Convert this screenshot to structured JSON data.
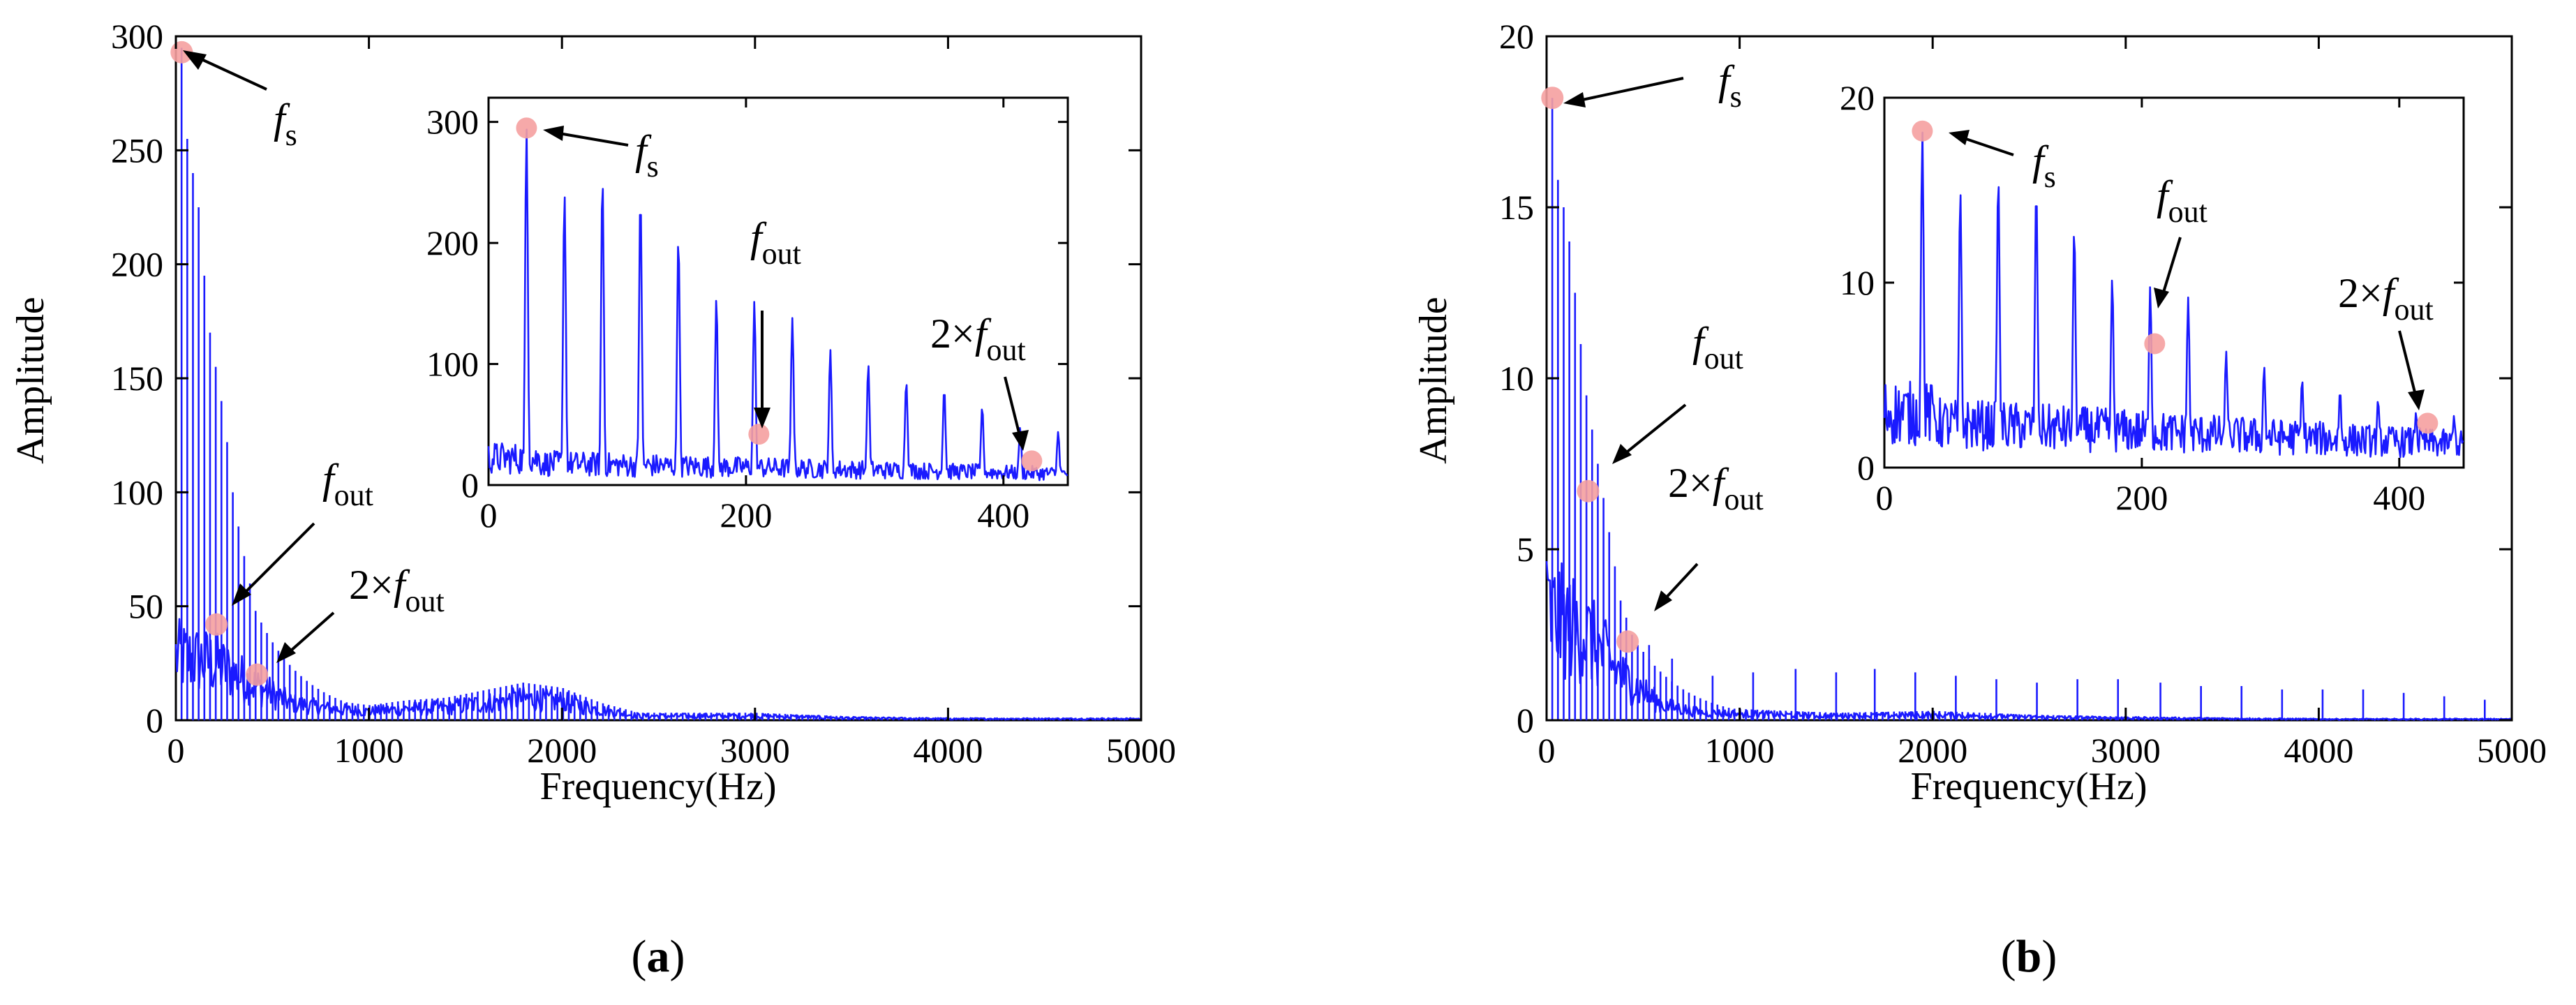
{
  "colors": {
    "line": "#1a1aff",
    "marker": "#f5a0a0",
    "axis": "#000000"
  },
  "chart_data": [
    {
      "id": "a",
      "type": "line",
      "panel_label": "a",
      "xlabel": "Frequency(Hz)",
      "ylabel": "Amplitude",
      "xlim": [
        0,
        5000
      ],
      "ylim": [
        0,
        300
      ],
      "xticks": [
        0,
        1000,
        2000,
        3000,
        4000,
        5000
      ],
      "yticks": [
        0,
        50,
        100,
        150,
        200,
        250,
        300
      ],
      "fs": 29.5,
      "peaks": [
        {
          "x": 29.5,
          "y": 295
        },
        {
          "x": 59,
          "y": 255
        },
        {
          "x": 88.5,
          "y": 240
        },
        {
          "x": 118,
          "y": 225
        },
        {
          "x": 147.5,
          "y": 195
        },
        {
          "x": 177,
          "y": 170
        },
        {
          "x": 206.5,
          "y": 155
        },
        {
          "x": 236,
          "y": 140
        },
        {
          "x": 265.5,
          "y": 122
        },
        {
          "x": 295,
          "y": 100
        },
        {
          "x": 324.5,
          "y": 85
        },
        {
          "x": 354,
          "y": 72
        },
        {
          "x": 383.5,
          "y": 60
        },
        {
          "x": 413,
          "y": 48
        }
      ],
      "baseline": [
        {
          "x": 0,
          "y": 45
        },
        {
          "x": 200,
          "y": 40
        },
        {
          "x": 400,
          "y": 25
        },
        {
          "x": 600,
          "y": 12
        },
        {
          "x": 800,
          "y": 8
        },
        {
          "x": 1000,
          "y": 6
        },
        {
          "x": 1200,
          "y": 8
        },
        {
          "x": 1400,
          "y": 9
        },
        {
          "x": 1600,
          "y": 12
        },
        {
          "x": 1800,
          "y": 15
        },
        {
          "x": 2000,
          "y": 13
        },
        {
          "x": 2200,
          "y": 7
        },
        {
          "x": 2400,
          "y": 3
        },
        {
          "x": 2800,
          "y": 3
        },
        {
          "x": 3000,
          "y": 3
        },
        {
          "x": 3500,
          "y": 1.5
        },
        {
          "x": 4000,
          "y": 1
        },
        {
          "x": 5000,
          "y": 1
        }
      ],
      "markers": [
        {
          "x": 30,
          "y": 293
        },
        {
          "x": 210,
          "y": 42
        },
        {
          "x": 420,
          "y": 20
        }
      ],
      "annotations": [
        {
          "base": "f",
          "sub": "s",
          "prefix": "",
          "target": {
            "x": 30,
            "y": 293
          }
        },
        {
          "base": "f",
          "sub": "out",
          "prefix": "",
          "target": {
            "x": 210,
            "y": 42
          }
        },
        {
          "base": "f",
          "sub": "out",
          "prefix": "2×",
          "target": {
            "x": 420,
            "y": 20
          }
        }
      ],
      "inset": {
        "xlim": [
          0,
          450
        ],
        "ylim": [
          0,
          320
        ],
        "xticks": [
          0,
          200,
          400
        ],
        "yticks": [
          0,
          100,
          200,
          300
        ],
        "fs": 29.5,
        "peaks": [
          {
            "x": 29.5,
            "y": 295
          },
          {
            "x": 59,
            "y": 242
          },
          {
            "x": 88.5,
            "y": 255
          },
          {
            "x": 118,
            "y": 240
          },
          {
            "x": 147.5,
            "y": 205
          },
          {
            "x": 177,
            "y": 155
          },
          {
            "x": 206.5,
            "y": 152
          },
          {
            "x": 236,
            "y": 138
          },
          {
            "x": 265.5,
            "y": 112
          },
          {
            "x": 295,
            "y": 100
          },
          {
            "x": 324.5,
            "y": 86
          },
          {
            "x": 354,
            "y": 80
          },
          {
            "x": 383.5,
            "y": 65
          },
          {
            "x": 413,
            "y": 48
          },
          {
            "x": 442.5,
            "y": 44
          }
        ],
        "noise_level": 30,
        "markers": [
          {
            "x": 29.5,
            "y": 295
          },
          {
            "x": 210,
            "y": 42
          },
          {
            "x": 422,
            "y": 20
          }
        ],
        "annotations": [
          {
            "base": "f",
            "sub": "s",
            "prefix": "",
            "target": {
              "x": 29.5,
              "y": 295
            }
          },
          {
            "base": "f",
            "sub": "out",
            "prefix": "",
            "target": {
              "x": 210,
              "y": 42
            }
          },
          {
            "base": "f",
            "sub": "out",
            "prefix": "2×",
            "target": {
              "x": 422,
              "y": 20
            }
          }
        ]
      }
    },
    {
      "id": "b",
      "type": "line",
      "panel_label": "b",
      "xlabel": "Frequency(Hz)",
      "ylabel": "Amplitude",
      "xlim": [
        0,
        5000
      ],
      "ylim": [
        0,
        20
      ],
      "xticks": [
        0,
        1000,
        2000,
        3000,
        4000,
        5000
      ],
      "yticks": [
        0,
        5,
        10,
        15,
        20
      ],
      "fs": 29.5,
      "peaks": [
        {
          "x": 29.5,
          "y": 18.2
        },
        {
          "x": 59,
          "y": 15.8
        },
        {
          "x": 88.5,
          "y": 15
        },
        {
          "x": 118,
          "y": 14
        },
        {
          "x": 147.5,
          "y": 12.5
        },
        {
          "x": 177,
          "y": 11
        },
        {
          "x": 206.5,
          "y": 9.5
        },
        {
          "x": 236,
          "y": 8.5
        },
        {
          "x": 265.5,
          "y": 7.5
        },
        {
          "x": 295,
          "y": 6.5
        },
        {
          "x": 324.5,
          "y": 5.5
        },
        {
          "x": 354,
          "y": 4.5
        },
        {
          "x": 383.5,
          "y": 3.5
        },
        {
          "x": 413,
          "y": 3
        },
        {
          "x": 442.5,
          "y": 2.5
        },
        {
          "x": 472,
          "y": 2.2
        },
        {
          "x": 501.5,
          "y": 2
        }
      ],
      "spikes": [
        {
          "x": 531,
          "y": 2.2
        },
        {
          "x": 650,
          "y": 1.8
        },
        {
          "x": 860,
          "y": 1.3
        },
        {
          "x": 1070,
          "y": 1.4
        },
        {
          "x": 1290,
          "y": 1.5
        },
        {
          "x": 1500,
          "y": 1.4
        },
        {
          "x": 1700,
          "y": 1.5
        },
        {
          "x": 1910,
          "y": 1.4
        },
        {
          "x": 2120,
          "y": 1.3
        },
        {
          "x": 2330,
          "y": 1.2
        },
        {
          "x": 2540,
          "y": 1.1
        },
        {
          "x": 2750,
          "y": 1.2
        },
        {
          "x": 2960,
          "y": 1.2
        },
        {
          "x": 3180,
          "y": 1.1
        },
        {
          "x": 3390,
          "y": 1.0
        },
        {
          "x": 3600,
          "y": 1.0
        },
        {
          "x": 3810,
          "y": 0.9
        },
        {
          "x": 4020,
          "y": 0.9
        },
        {
          "x": 4230,
          "y": 0.9
        },
        {
          "x": 4440,
          "y": 0.8
        },
        {
          "x": 4650,
          "y": 0.7
        },
        {
          "x": 4860,
          "y": 0.6
        }
      ],
      "baseline": [
        {
          "x": 0,
          "y": 5
        },
        {
          "x": 200,
          "y": 4
        },
        {
          "x": 400,
          "y": 2
        },
        {
          "x": 600,
          "y": 0.7
        },
        {
          "x": 800,
          "y": 0.35
        },
        {
          "x": 1000,
          "y": 0.3
        },
        {
          "x": 1500,
          "y": 0.2
        },
        {
          "x": 2000,
          "y": 0.25
        },
        {
          "x": 2500,
          "y": 0.15
        },
        {
          "x": 3000,
          "y": 0.1
        },
        {
          "x": 4000,
          "y": 0.05
        },
        {
          "x": 5000,
          "y": 0.05
        }
      ],
      "markers": [
        {
          "x": 30,
          "y": 18.2
        },
        {
          "x": 215,
          "y": 6.7
        },
        {
          "x": 420,
          "y": 2.3
        }
      ],
      "annotations": [
        {
          "base": "f",
          "sub": "s",
          "prefix": "",
          "target": {
            "x": 30,
            "y": 18.2
          }
        },
        {
          "base": "f",
          "sub": "out",
          "prefix": "",
          "target": {
            "x": 215,
            "y": 6.7
          }
        },
        {
          "base": "f",
          "sub": "out",
          "prefix": "2×",
          "target": {
            "x": 420,
            "y": 2.3
          }
        }
      ],
      "inset": {
        "xlim": [
          0,
          450
        ],
        "ylim": [
          0,
          20
        ],
        "xticks": [
          0,
          200,
          400
        ],
        "yticks": [
          0,
          10,
          20
        ],
        "fs": 29.5,
        "peaks": [
          {
            "x": 29.5,
            "y": 18.2
          },
          {
            "x": 59,
            "y": 15
          },
          {
            "x": 88.5,
            "y": 15.8
          },
          {
            "x": 118,
            "y": 15.2
          },
          {
            "x": 147.5,
            "y": 13
          },
          {
            "x": 177,
            "y": 10.3
          },
          {
            "x": 206.5,
            "y": 9.8
          },
          {
            "x": 236,
            "y": 9.2
          },
          {
            "x": 265.5,
            "y": 6.3
          },
          {
            "x": 295,
            "y": 5.5
          },
          {
            "x": 324.5,
            "y": 4.8
          },
          {
            "x": 354,
            "y": 4.2
          },
          {
            "x": 383.5,
            "y": 3.7
          },
          {
            "x": 413,
            "y": 3
          },
          {
            "x": 442.5,
            "y": 2.8
          }
        ],
        "noise_level": 4,
        "markers": [
          {
            "x": 29.5,
            "y": 18.2
          },
          {
            "x": 210,
            "y": 6.7
          },
          {
            "x": 422,
            "y": 2.4
          }
        ],
        "annotations": [
          {
            "base": "f",
            "sub": "s",
            "prefix": "",
            "target": {
              "x": 29.5,
              "y": 18.2
            }
          },
          {
            "base": "f",
            "sub": "out",
            "prefix": "",
            "target": {
              "x": 210,
              "y": 6.7
            }
          },
          {
            "base": "f",
            "sub": "out",
            "prefix": "2×",
            "target": {
              "x": 422,
              "y": 2.4
            }
          }
        ]
      }
    }
  ]
}
